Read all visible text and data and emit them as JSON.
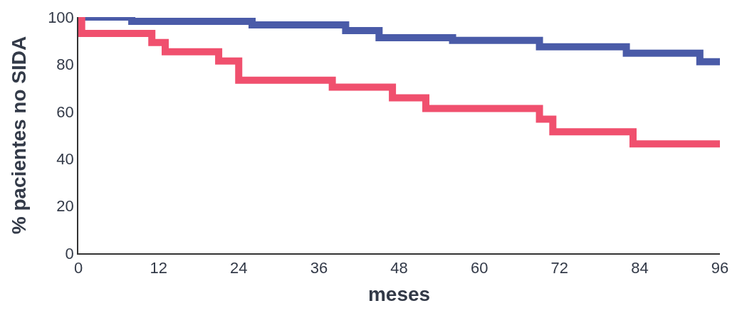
{
  "chart_data": {
    "type": "step",
    "xlabel": "meses",
    "ylabel": "% pacientes no SIDA",
    "xlim": [
      0,
      96
    ],
    "ylim": [
      0,
      100
    ],
    "xticks": [
      0,
      12,
      24,
      36,
      48,
      60,
      72,
      84,
      96
    ],
    "yticks": [
      0,
      20,
      40,
      60,
      80,
      100
    ],
    "marker": "none",
    "line_style": "solid",
    "series": [
      {
        "color": "#4a5ba8",
        "x": [
          0,
          8,
          26,
          40,
          45,
          56,
          69,
          82,
          93,
          96
        ],
        "values": [
          100,
          98.2,
          96.7,
          94.3,
          91.3,
          90.1,
          87.4,
          84.7,
          81.1,
          81.1
        ]
      },
      {
        "color": "#f0506e",
        "x": [
          0,
          0.5,
          11,
          13,
          21,
          24,
          38,
          47,
          52,
          69,
          71,
          83,
          96
        ],
        "values": [
          100,
          93.1,
          89.2,
          85.3,
          81.4,
          73.3,
          70.3,
          65.8,
          61.3,
          56.8,
          51.4,
          46.3,
          46.3
        ]
      }
    ]
  }
}
